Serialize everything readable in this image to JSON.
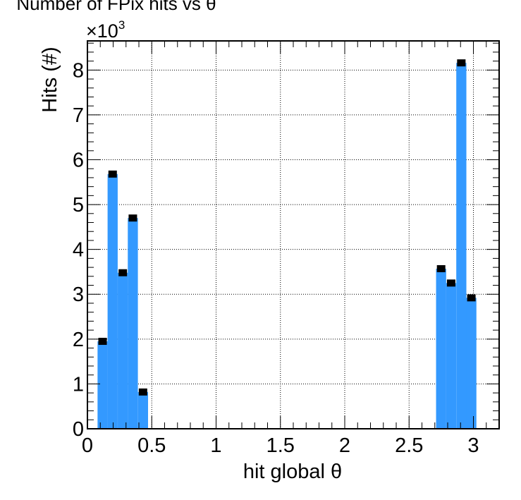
{
  "chart_data": {
    "type": "bar",
    "title": "Number of FPix hits vs θ",
    "xlabel": "hit global θ",
    "ylabel": "Hits (#)",
    "y_multiplier": "×10",
    "y_multiplier_exp": "3",
    "xlim": [
      0,
      3.2
    ],
    "ylim": [
      0,
      8.65
    ],
    "y_unit_scale": 1000,
    "xticks": [
      0,
      0.5,
      1,
      1.5,
      2,
      2.5,
      3
    ],
    "xtick_labels": [
      "0",
      "0.5",
      "1",
      "1.5",
      "2",
      "2.5",
      "3"
    ],
    "yticks": [
      0,
      1,
      2,
      3,
      4,
      5,
      6,
      7,
      8
    ],
    "ytick_labels": [
      "0",
      "1",
      "2",
      "3",
      "4",
      "5",
      "6",
      "7",
      "8"
    ],
    "grid": true,
    "bar_color": "#3399ff",
    "marker_color": "#000000",
    "bin_width": 0.0785,
    "bins": [
      {
        "x": 0.118,
        "value": 1950
      },
      {
        "x": 0.196,
        "value": 5680
      },
      {
        "x": 0.275,
        "value": 3480
      },
      {
        "x": 0.353,
        "value": 4700
      },
      {
        "x": 0.432,
        "value": 820
      },
      {
        "x": 2.749,
        "value": 3570
      },
      {
        "x": 2.827,
        "value": 3250
      },
      {
        "x": 2.906,
        "value": 8160
      },
      {
        "x": 2.984,
        "value": 2920
      }
    ]
  }
}
